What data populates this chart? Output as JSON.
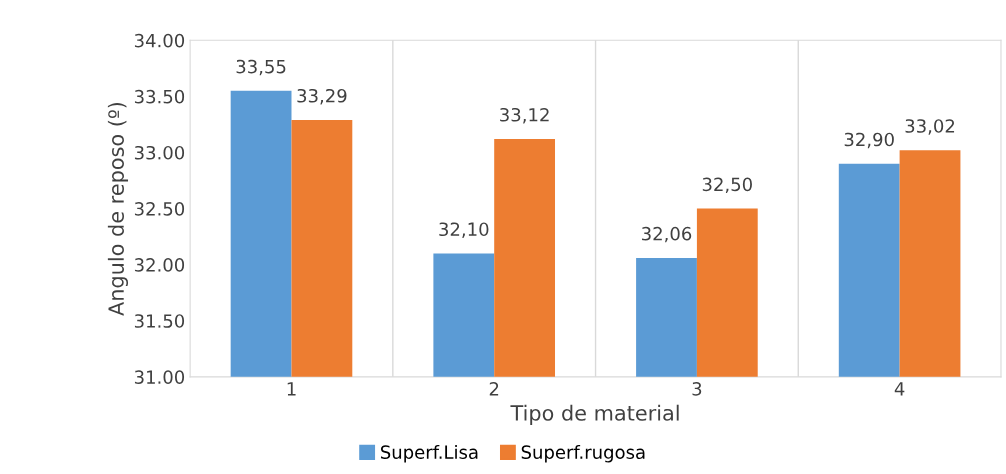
{
  "chart_data": {
    "type": "bar",
    "xlabel": "Tipo de material",
    "ylabel": "Angulo de reposo (º)",
    "categories": [
      "1",
      "2",
      "3",
      "4"
    ],
    "series": [
      {
        "name": "Superf.Lisa",
        "color": "#5b9bd5",
        "values": [
          33.55,
          32.1,
          32.06,
          32.9
        ],
        "value_labels": [
          "33,55",
          "32,10",
          "32,06",
          "32,90"
        ]
      },
      {
        "name": "Superf.rugosa",
        "color": "#ed7d31",
        "values": [
          33.29,
          33.12,
          32.5,
          33.02
        ],
        "value_labels": [
          "33,29",
          "33,12",
          "32,50",
          "33,02"
        ]
      }
    ],
    "ylim": [
      31,
      34
    ],
    "yticks": [
      {
        "value": 31,
        "label": "31.00"
      },
      {
        "value": 31.5,
        "label": "31.50"
      },
      {
        "value": 32,
        "label": "32.00"
      },
      {
        "value": 32.5,
        "label": "32.50"
      },
      {
        "value": 33,
        "label": "33.00"
      },
      {
        "value": 33.5,
        "label": "33.50"
      },
      {
        "value": 34,
        "label": "34.00"
      }
    ],
    "grid": "x",
    "legend": "bottom"
  }
}
